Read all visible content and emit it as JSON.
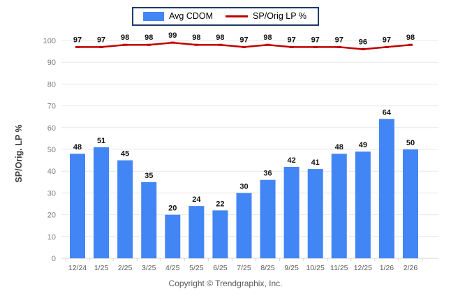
{
  "legend": {
    "items": [
      {
        "label": "Avg CDOM",
        "type": "bar",
        "color": "#4285f4"
      },
      {
        "label": "SP/Orig LP %",
        "type": "line",
        "color": "#c00000"
      }
    ]
  },
  "footer": {
    "copyright": "Copyright © Trendgraphix, Inc."
  },
  "chart_data": {
    "type": "bar",
    "subtype": "bar+line combo",
    "categories": [
      "12/24",
      "1/25",
      "2/25",
      "3/25",
      "4/25",
      "5/25",
      "6/25",
      "7/25",
      "8/25",
      "9/25",
      "10/25",
      "11/25",
      "12/25",
      "1/26",
      "2/26"
    ],
    "series": [
      {
        "name": "Avg CDOM",
        "type": "bar",
        "color": "#4285f4",
        "values": [
          48,
          51,
          45,
          35,
          20,
          24,
          22,
          30,
          36,
          42,
          41,
          48,
          49,
          64,
          50
        ]
      },
      {
        "name": "SP/Orig LP %",
        "type": "line",
        "color": "#c00000",
        "values": [
          97,
          97,
          98,
          98,
          99,
          98,
          98,
          97,
          98,
          97,
          97,
          97,
          96,
          97,
          98
        ]
      }
    ],
    "title": "",
    "xlabel": "",
    "ylabel": "SP/Orig. LP %",
    "ylim": [
      0,
      100
    ],
    "yticks": [
      0,
      10,
      20,
      30,
      40,
      50,
      60,
      70,
      80,
      90,
      100
    ],
    "grid": true,
    "gridline_color": "#e8e8e8",
    "axis_tick_label_color": "#808080",
    "x_tick_label_color": "#595959",
    "data_label_color": "#111111",
    "legend_position": "top-center"
  }
}
